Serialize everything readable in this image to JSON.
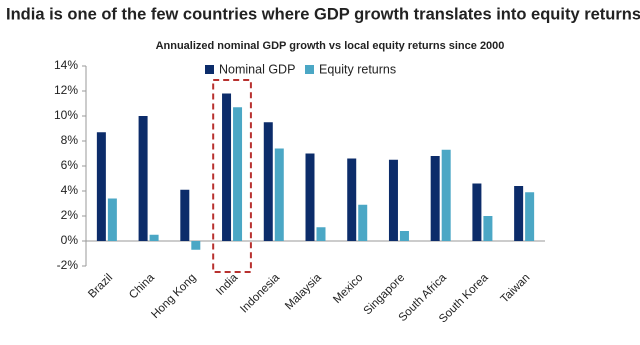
{
  "chart_data": {
    "type": "bar",
    "title": "India is one of the few countries where GDP growth translates into equity returns",
    "subtitle": "Annualized nominal GDP growth vs local equity returns since 2000",
    "categories": [
      "Brazil",
      "China",
      "Hong Kong",
      "India",
      "Indonesia",
      "Malaysia",
      "Mexico",
      "Singapore",
      "South Africa",
      "South Korea",
      "Taiwan"
    ],
    "series": [
      {
        "name": "Nominal GDP",
        "color": "#0c2c6a",
        "values": [
          8.7,
          10.0,
          4.1,
          11.8,
          9.5,
          7.0,
          6.6,
          6.5,
          6.8,
          4.6,
          4.4
        ]
      },
      {
        "name": "Equity returns",
        "color": "#4ba7c5",
        "values": [
          3.4,
          0.5,
          -0.7,
          10.7,
          7.4,
          1.1,
          2.9,
          0.8,
          7.3,
          2.0,
          3.9
        ]
      }
    ],
    "ylim": [
      -2,
      14
    ],
    "yticks": [
      {
        "value": -2,
        "label": "-2%"
      },
      {
        "value": 0,
        "label": "0%"
      },
      {
        "value": 2,
        "label": "2%"
      },
      {
        "value": 4,
        "label": "4%"
      },
      {
        "value": 6,
        "label": "6%"
      },
      {
        "value": 8,
        "label": "8%"
      },
      {
        "value": 10,
        "label": "10%"
      },
      {
        "value": 12,
        "label": "12%"
      },
      {
        "value": 14,
        "label": "14%"
      }
    ],
    "highlight": 3,
    "highlight_color": "#b8312f"
  }
}
